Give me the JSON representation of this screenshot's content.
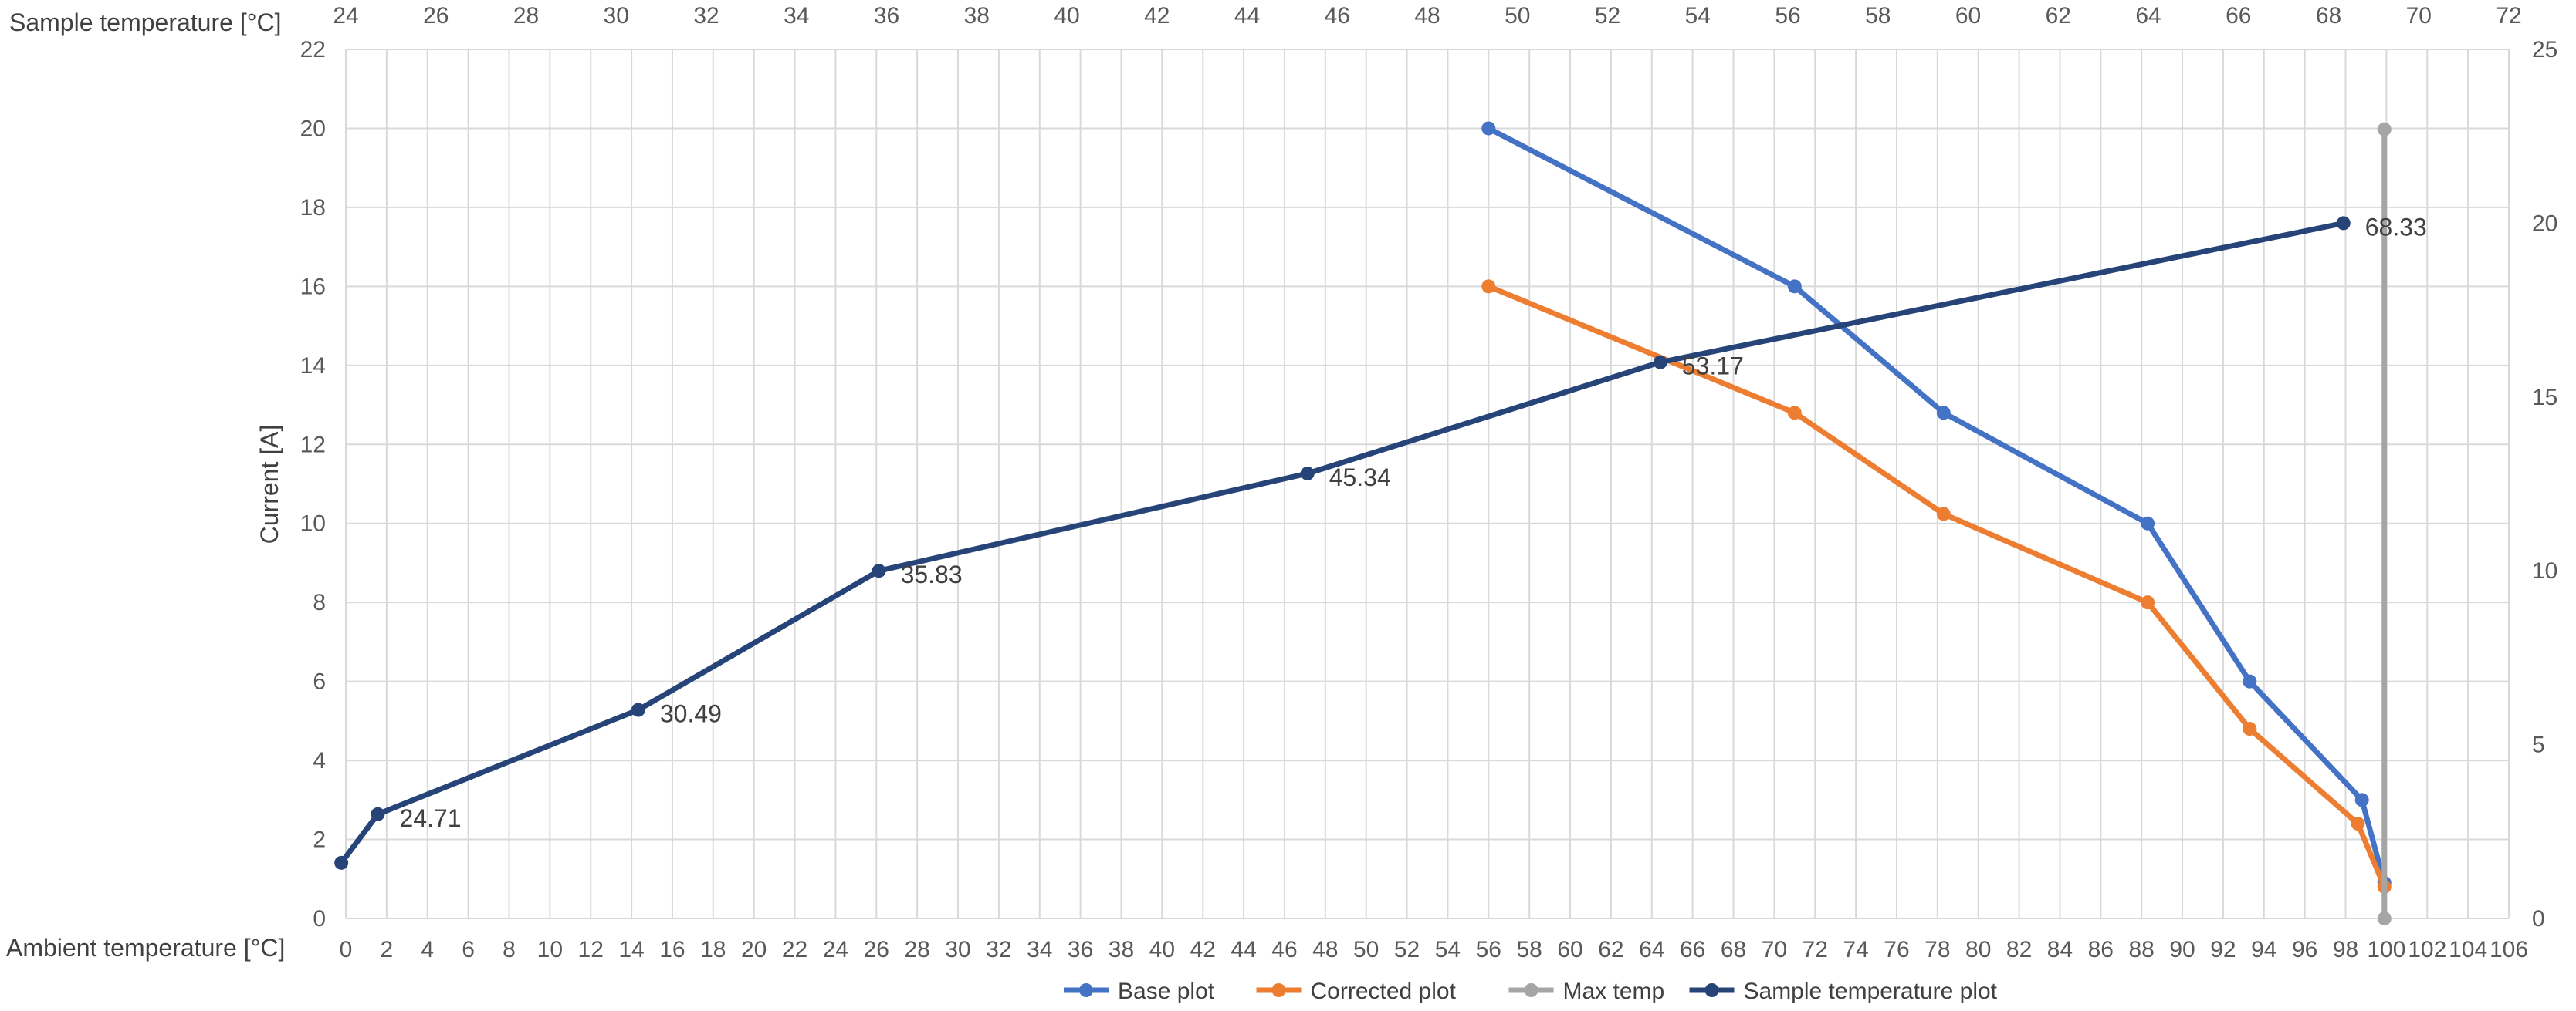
{
  "chart_data": {
    "type": "line",
    "axes": {
      "bottom": {
        "label": "Ambient temperature [°C]",
        "min": 0,
        "max": 106,
        "tick_step": 2,
        "grid": true
      },
      "top": {
        "label": "Sample temperature [°C]",
        "min": 24,
        "max": 72,
        "tick_step": 2
      },
      "left": {
        "label": "Current [A]",
        "min": 0,
        "max": 22,
        "tick_step": 2,
        "grid": true
      },
      "right": {
        "label": "",
        "min": 0,
        "max": 25,
        "tick_step": 5
      }
    },
    "series": [
      {
        "name": "Base plot",
        "color": "#4472C4",
        "axes": "bottom-left",
        "points": [
          [
            56,
            20
          ],
          [
            71,
            16
          ],
          [
            78.3,
            12.8
          ],
          [
            88.3,
            10
          ],
          [
            93.3,
            6
          ],
          [
            98.8,
            3
          ],
          [
            99.9,
            0.9
          ]
        ]
      },
      {
        "name": "Corrected plot",
        "color": "#ED7D31",
        "axes": "bottom-left",
        "points": [
          [
            56,
            16
          ],
          [
            71,
            12.8
          ],
          [
            78.3,
            10.24
          ],
          [
            88.3,
            8
          ],
          [
            93.3,
            4.8
          ],
          [
            98.6,
            2.4
          ],
          [
            99.9,
            0.8
          ]
        ]
      },
      {
        "name": "Max temp",
        "color": "#A5A5A5",
        "axes": "bottom-right",
        "points": [
          [
            99.9,
            22.7
          ],
          [
            99.9,
            0
          ]
        ]
      },
      {
        "name": "Sample temperature plot",
        "color": "#264478",
        "axes": "top-right",
        "points": [
          [
            23.9,
            1.6
          ],
          [
            24.71,
            3
          ],
          [
            30.49,
            6
          ],
          [
            35.83,
            10
          ],
          [
            45.34,
            12.8
          ],
          [
            53.17,
            16
          ],
          [
            68.33,
            20
          ]
        ],
        "data_labels": [
          "",
          "24.71",
          "30.49",
          "35.83",
          "45.34",
          "53.17",
          "68.33"
        ]
      }
    ],
    "legend": {
      "position": "bottom"
    }
  },
  "texts": {
    "top_axis_title": "Sample temperature [°C]",
    "bottom_axis_title": "Ambient temperature [°C]",
    "left_axis_title": "Current [A]"
  }
}
